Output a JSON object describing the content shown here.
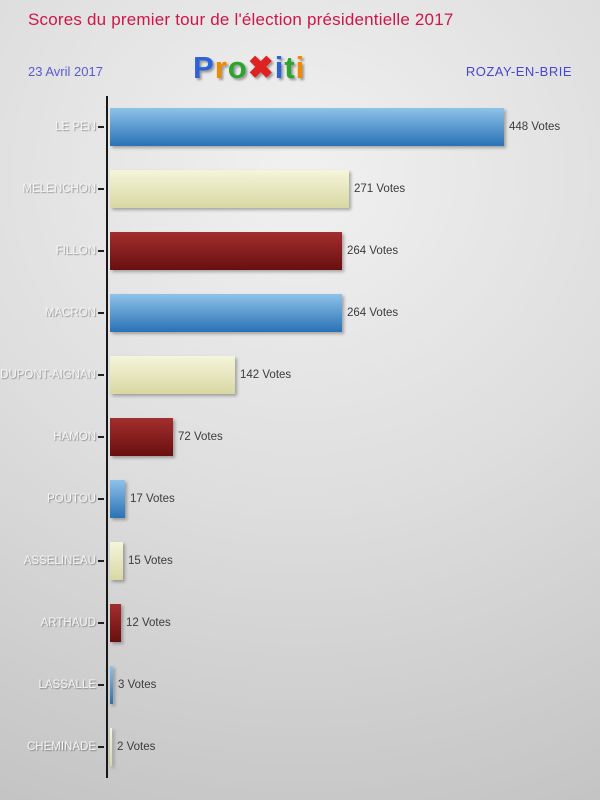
{
  "header": {
    "title": "Scores du premier tour de l'élection présidentielle 2017",
    "date": "23 Avril 2017",
    "city": "ROZAY-EN-BRIE",
    "logo": {
      "name": "Proxiti",
      "letters": [
        {
          "ch": "P",
          "color": "#2c63d8"
        },
        {
          "ch": "r",
          "color": "#f08a00"
        },
        {
          "ch": "o",
          "color": "#2fa32f"
        },
        {
          "ch": "x",
          "glyph": "✖",
          "color": "#e02121"
        },
        {
          "ch": "i",
          "color": "#2c63d8"
        },
        {
          "ch": "t",
          "color": "#2fa32f"
        },
        {
          "ch": "i",
          "color": "#f08a00"
        }
      ]
    }
  },
  "chart_data": {
    "type": "bar",
    "orientation": "horizontal",
    "title": "Scores du premier tour de l'élection présidentielle 2017",
    "categories": [
      "LE PEN",
      "MELENCHON",
      "FILLON",
      "MACRON",
      "DUPONT-AIGNAN",
      "HAMON",
      "POUTOU",
      "ASSELINEAU",
      "ARTHAUD",
      "LASSALLE",
      "CHEMINADE"
    ],
    "values": [
      448,
      271,
      264,
      264,
      142,
      72,
      17,
      15,
      12,
      3,
      2
    ],
    "value_suffix": " Votes",
    "xlim": [
      0,
      460
    ],
    "grid": false,
    "legend": "none",
    "bar_palette": [
      "blue",
      "cream",
      "darkred"
    ],
    "palette_colors": {
      "blue": [
        "#8ec2e9",
        "#2a72b5"
      ],
      "cream": [
        "#f5f5db",
        "#d8d8a4"
      ],
      "darkred": [
        "#a32e2e",
        "#690f0f"
      ]
    },
    "axis_color": "#181818"
  }
}
